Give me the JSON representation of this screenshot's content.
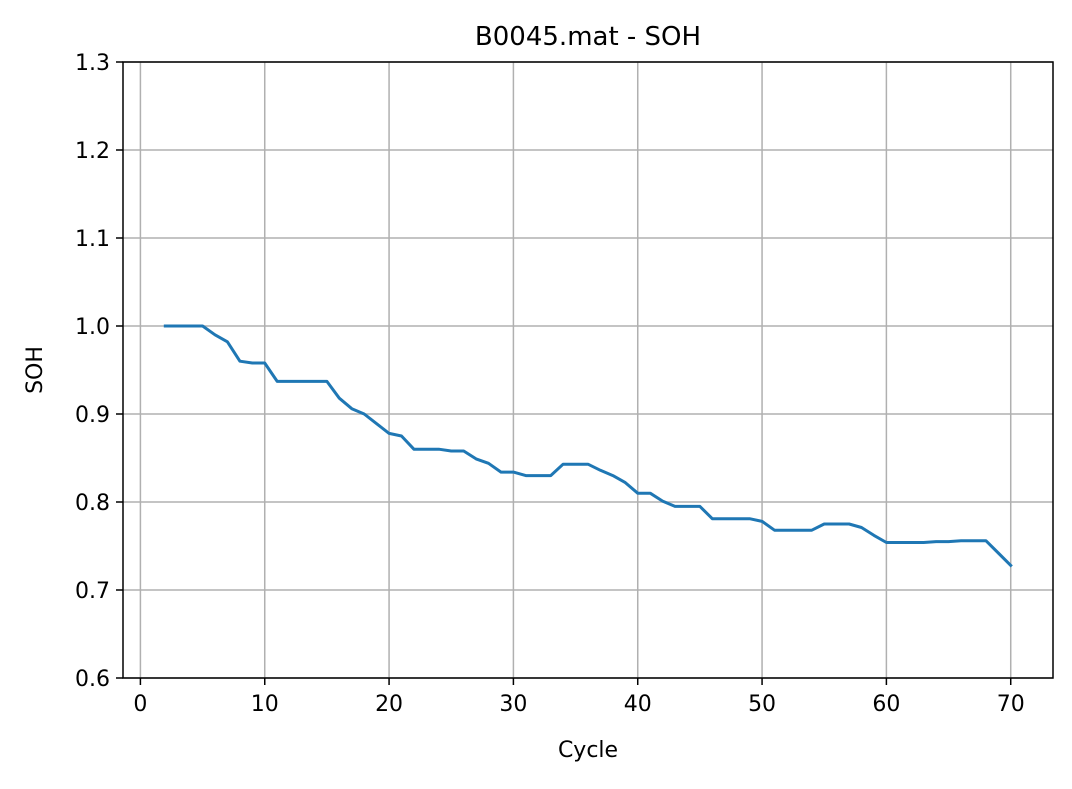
{
  "chart_data": {
    "type": "line",
    "title": "B0045.mat - SOH",
    "xlabel": "Cycle",
    "ylabel": "SOH",
    "xlim": [
      -1.4,
      73.4
    ],
    "ylim": [
      0.6,
      1.3
    ],
    "x_ticks": [
      0,
      10,
      20,
      30,
      40,
      50,
      60,
      70
    ],
    "x_tick_labels": [
      "0",
      "10",
      "20",
      "30",
      "40",
      "50",
      "60",
      "70"
    ],
    "y_ticks": [
      0.6,
      0.7,
      0.8,
      0.9,
      1.0,
      1.1,
      1.2,
      1.3
    ],
    "y_tick_labels": [
      "0.6",
      "0.7",
      "0.8",
      "0.9",
      "1.0",
      "1.1",
      "1.2",
      "1.3"
    ],
    "grid": true,
    "series": [
      {
        "color": "#1f77b4",
        "x": [
          2,
          3,
          4,
          5,
          6,
          7,
          8,
          9,
          10,
          11,
          12,
          13,
          14,
          15,
          16,
          17,
          18,
          19,
          20,
          21,
          22,
          23,
          24,
          25,
          26,
          27,
          28,
          29,
          30,
          31,
          32,
          33,
          34,
          35,
          36,
          37,
          38,
          39,
          40,
          41,
          42,
          43,
          44,
          45,
          46,
          47,
          48,
          49,
          50,
          51,
          52,
          53,
          54,
          55,
          56,
          57,
          58,
          59,
          60,
          61,
          62,
          63,
          64,
          65,
          66,
          67,
          68,
          69,
          70
        ],
        "y": [
          1.0,
          1.0,
          1.0,
          1.0,
          0.99,
          0.982,
          0.96,
          0.958,
          0.958,
          0.937,
          0.937,
          0.937,
          0.937,
          0.937,
          0.918,
          0.906,
          0.9,
          0.889,
          0.878,
          0.875,
          0.86,
          0.86,
          0.86,
          0.858,
          0.858,
          0.849,
          0.844,
          0.834,
          0.834,
          0.83,
          0.83,
          0.83,
          0.843,
          0.843,
          0.843,
          0.836,
          0.83,
          0.822,
          0.81,
          0.81,
          0.801,
          0.795,
          0.795,
          0.795,
          0.781,
          0.781,
          0.781,
          0.781,
          0.778,
          0.768,
          0.768,
          0.768,
          0.768,
          0.775,
          0.775,
          0.775,
          0.771,
          0.762,
          0.754,
          0.754,
          0.754,
          0.754,
          0.755,
          0.755,
          0.756,
          0.756,
          0.756,
          0.742,
          0.728
        ]
      }
    ]
  }
}
